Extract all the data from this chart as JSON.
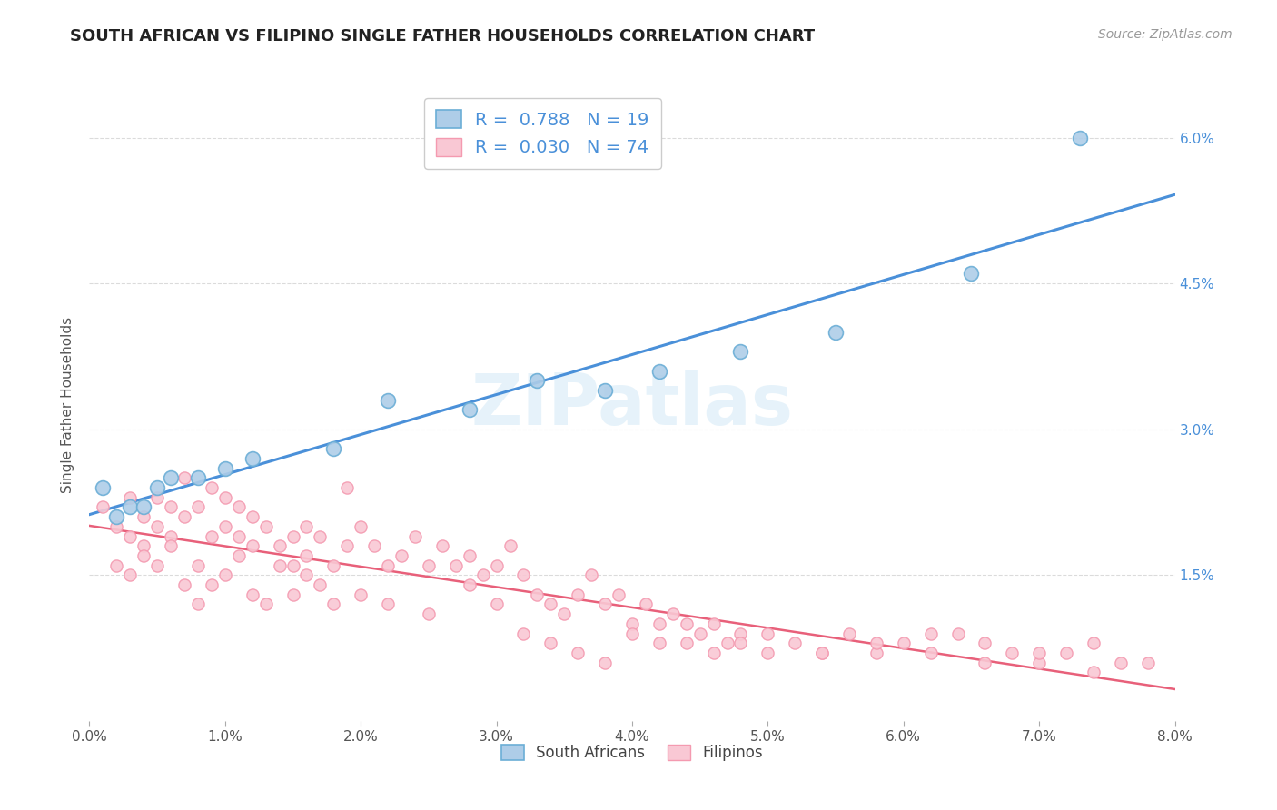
{
  "title": "SOUTH AFRICAN VS FILIPINO SINGLE FATHER HOUSEHOLDS CORRELATION CHART",
  "source": "Source: ZipAtlas.com",
  "ylabel": "Single Father Households",
  "xlim": [
    0.0,
    0.08
  ],
  "ylim": [
    0.0,
    0.065
  ],
  "sa_color": "#6baed6",
  "sa_color_fill": "#aecde8",
  "fil_color": "#f49ab0",
  "fil_color_fill": "#f9c8d4",
  "line_sa_color": "#4a90d9",
  "line_fil_color": "#e8607a",
  "watermark": "ZIPatlas",
  "legend_r_sa": "0.788",
  "legend_n_sa": "19",
  "legend_r_fil": "0.030",
  "legend_n_fil": "74",
  "y_tick_vals": [
    0.015,
    0.03,
    0.045,
    0.06
  ],
  "x_tick_vals": [
    0.0,
    0.01,
    0.02,
    0.03,
    0.04,
    0.05,
    0.06,
    0.07,
    0.08
  ],
  "sa_x": [
    0.001,
    0.002,
    0.003,
    0.004,
    0.005,
    0.006,
    0.008,
    0.01,
    0.012,
    0.018,
    0.022,
    0.028,
    0.033,
    0.038,
    0.042,
    0.048,
    0.055,
    0.065,
    0.073
  ],
  "sa_y": [
    0.024,
    0.021,
    0.022,
    0.022,
    0.024,
    0.025,
    0.025,
    0.026,
    0.027,
    0.028,
    0.033,
    0.032,
    0.035,
    0.034,
    0.036,
    0.038,
    0.04,
    0.046,
    0.06
  ],
  "fil_x": [
    0.001,
    0.002,
    0.003,
    0.003,
    0.004,
    0.004,
    0.005,
    0.005,
    0.006,
    0.006,
    0.007,
    0.007,
    0.008,
    0.008,
    0.009,
    0.009,
    0.01,
    0.01,
    0.011,
    0.011,
    0.012,
    0.012,
    0.013,
    0.014,
    0.015,
    0.015,
    0.016,
    0.016,
    0.017,
    0.018,
    0.019,
    0.02,
    0.021,
    0.022,
    0.023,
    0.024,
    0.025,
    0.026,
    0.027,
    0.028,
    0.029,
    0.03,
    0.031,
    0.032,
    0.033,
    0.034,
    0.035,
    0.036,
    0.037,
    0.038,
    0.039,
    0.04,
    0.041,
    0.042,
    0.043,
    0.044,
    0.045,
    0.046,
    0.047,
    0.048,
    0.05,
    0.052,
    0.054,
    0.056,
    0.058,
    0.06,
    0.062,
    0.064,
    0.066,
    0.068,
    0.07,
    0.072,
    0.074,
    0.076
  ],
  "fil_y": [
    0.022,
    0.02,
    0.019,
    0.023,
    0.018,
    0.021,
    0.02,
    0.023,
    0.019,
    0.022,
    0.021,
    0.025,
    0.022,
    0.016,
    0.024,
    0.019,
    0.02,
    0.023,
    0.019,
    0.022,
    0.018,
    0.021,
    0.02,
    0.018,
    0.016,
    0.019,
    0.02,
    0.017,
    0.019,
    0.016,
    0.024,
    0.02,
    0.018,
    0.016,
    0.017,
    0.019,
    0.016,
    0.018,
    0.016,
    0.017,
    0.015,
    0.016,
    0.018,
    0.015,
    0.013,
    0.012,
    0.011,
    0.013,
    0.015,
    0.012,
    0.013,
    0.01,
    0.012,
    0.01,
    0.011,
    0.008,
    0.009,
    0.01,
    0.008,
    0.009,
    0.007,
    0.008,
    0.007,
    0.009,
    0.007,
    0.008,
    0.007,
    0.009,
    0.006,
    0.007,
    0.006,
    0.007,
    0.005,
    0.006
  ],
  "fil_x_extra": [
    0.002,
    0.003,
    0.004,
    0.005,
    0.006,
    0.007,
    0.008,
    0.009,
    0.01,
    0.011,
    0.012,
    0.013,
    0.014,
    0.015,
    0.016,
    0.017,
    0.018,
    0.019,
    0.02,
    0.022,
    0.025,
    0.028,
    0.03,
    0.032,
    0.034,
    0.036,
    0.038,
    0.04,
    0.042,
    0.044,
    0.046,
    0.048,
    0.05,
    0.054,
    0.058,
    0.062,
    0.066,
    0.07,
    0.074,
    0.078
  ],
  "fil_y_extra": [
    0.016,
    0.015,
    0.017,
    0.016,
    0.018,
    0.014,
    0.012,
    0.014,
    0.015,
    0.017,
    0.013,
    0.012,
    0.016,
    0.013,
    0.015,
    0.014,
    0.012,
    0.018,
    0.013,
    0.012,
    0.011,
    0.014,
    0.012,
    0.009,
    0.008,
    0.007,
    0.006,
    0.009,
    0.008,
    0.01,
    0.007,
    0.008,
    0.009,
    0.007,
    0.008,
    0.009,
    0.008,
    0.007,
    0.008,
    0.006
  ]
}
